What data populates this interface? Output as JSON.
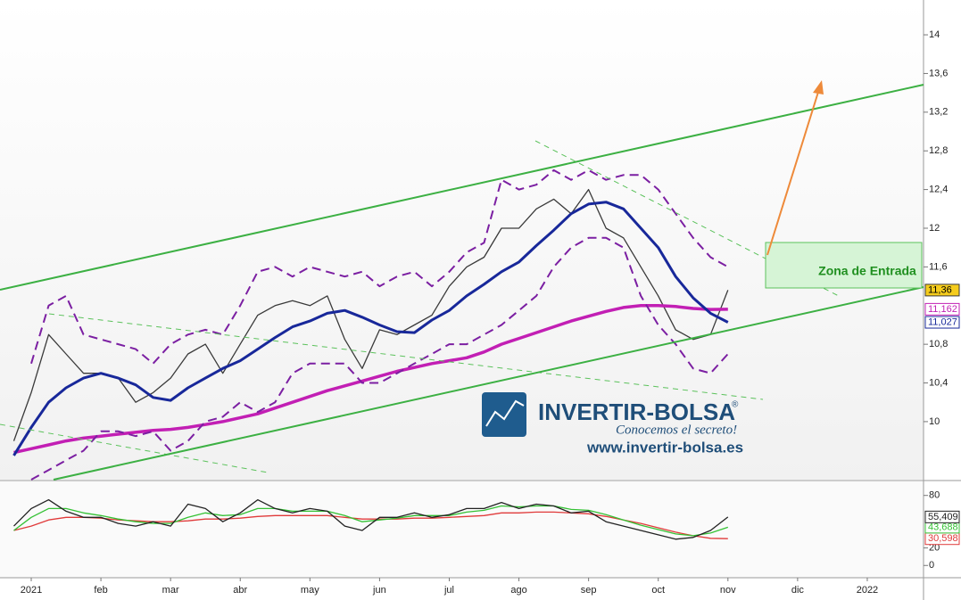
{
  "chart_data": {
    "type": "line",
    "categories": [
      null,
      "2021",
      null,
      null,
      null,
      "feb",
      null,
      null,
      null,
      "mar",
      null,
      null,
      null,
      "abr",
      null,
      null,
      null,
      "may",
      null,
      null,
      null,
      "jun",
      null,
      null,
      null,
      "jul",
      null,
      null,
      null,
      "ago",
      null,
      null,
      null,
      "sep",
      null,
      null,
      null,
      "oct",
      null,
      null,
      null,
      "nov",
      null,
      null,
      null,
      "dic",
      null,
      null,
      null,
      "2022",
      null,
      null,
      null
    ],
    "ylim": [
      9.4,
      14.36
    ],
    "yticks": [
      10,
      {
        "value": 10.4,
        "label": "10,4"
      },
      {
        "value": 10.8,
        "label": "10,8"
      },
      {
        "value": 11.6,
        "label": "11,6"
      },
      12,
      {
        "value": 12.4,
        "label": "12,4"
      },
      {
        "value": 12.8,
        "label": "12,8"
      },
      {
        "value": 13.2,
        "label": "13,2"
      },
      {
        "value": 13.6,
        "label": "13,6"
      },
      14
    ],
    "y2lim": [
      -14,
      96
    ],
    "y2ticks": [
      0,
      20,
      80
    ],
    "grid": false,
    "series": [
      {
        "color": "#3a3a3a",
        "width": 1.3,
        "label_background": "#f5cc1c",
        "values": [
          9.8,
          10.3,
          10.9,
          10.7,
          10.5,
          10.5,
          10.45,
          10.2,
          10.3,
          10.45,
          10.7,
          10.8,
          10.5,
          10.8,
          11.1,
          11.2,
          11.25,
          11.2,
          11.3,
          10.85,
          10.55,
          10.95,
          10.9,
          11.0,
          11.1,
          11.4,
          11.6,
          11.7,
          12.0,
          12.0,
          12.2,
          12.3,
          12.15,
          12.4,
          12.0,
          11.9,
          11.6,
          11.3,
          10.95,
          10.85,
          10.9,
          11.36,
          null,
          null,
          null,
          null,
          null,
          null,
          null,
          null,
          null,
          null,
          null
        ],
        "value_labels": [
          null,
          null,
          null,
          null,
          null,
          null,
          null,
          null,
          null,
          null,
          null,
          null,
          null,
          null,
          null,
          null,
          null,
          null,
          null,
          null,
          null,
          null,
          null,
          null,
          null,
          null,
          null,
          null,
          null,
          null,
          null,
          null,
          null,
          null,
          null,
          null,
          null,
          null,
          null,
          null,
          null,
          "11,36",
          null,
          null,
          null,
          null,
          null,
          null,
          null,
          null,
          null,
          null,
          null
        ]
      },
      {
        "color": "#c21fb4",
        "width": 3.5,
        "values": [
          9.68,
          9.72,
          9.76,
          9.8,
          9.83,
          9.85,
          9.87,
          9.89,
          9.91,
          9.92,
          9.94,
          9.97,
          10.0,
          10.04,
          10.08,
          10.14,
          10.2,
          10.26,
          10.32,
          10.37,
          10.42,
          10.47,
          10.52,
          10.56,
          10.6,
          10.63,
          10.66,
          10.72,
          10.8,
          10.86,
          10.92,
          10.98,
          11.04,
          11.09,
          11.14,
          11.18,
          11.2,
          11.2,
          11.19,
          11.17,
          11.16,
          11.162,
          null,
          null,
          null,
          null,
          null,
          null,
          null,
          null,
          null,
          null,
          null
        ],
        "value_labels": [
          null,
          null,
          null,
          null,
          null,
          null,
          null,
          null,
          null,
          null,
          null,
          null,
          null,
          null,
          null,
          null,
          null,
          null,
          null,
          null,
          null,
          null,
          null,
          null,
          null,
          null,
          null,
          null,
          null,
          null,
          null,
          null,
          null,
          null,
          null,
          null,
          null,
          null,
          null,
          null,
          null,
          "11,162",
          null,
          null,
          null,
          null,
          null,
          null,
          null,
          null,
          null,
          null,
          null
        ]
      },
      {
        "color": "#18289a",
        "width": 3,
        "values": [
          9.65,
          9.94,
          10.2,
          10.35,
          10.45,
          10.5,
          10.45,
          10.38,
          10.25,
          10.22,
          10.35,
          10.45,
          10.55,
          10.63,
          10.75,
          10.87,
          10.98,
          11.04,
          11.12,
          11.15,
          11.08,
          11.0,
          10.93,
          10.92,
          11.05,
          11.15,
          11.3,
          11.42,
          11.55,
          11.65,
          11.82,
          11.98,
          12.15,
          12.25,
          12.27,
          12.2,
          12.0,
          11.8,
          11.5,
          11.28,
          11.12,
          11.027,
          null,
          null,
          null,
          null,
          null,
          null,
          null,
          null,
          null,
          null,
          null
        ],
        "value_labels": [
          null,
          null,
          null,
          null,
          null,
          null,
          null,
          null,
          null,
          null,
          null,
          null,
          null,
          null,
          null,
          null,
          null,
          null,
          null,
          null,
          null,
          null,
          null,
          null,
          null,
          null,
          null,
          null,
          null,
          null,
          null,
          null,
          null,
          null,
          null,
          null,
          null,
          null,
          null,
          null,
          null,
          "11,027",
          null,
          null,
          null,
          null,
          null,
          null,
          null,
          null,
          null,
          null,
          null
        ]
      },
      {
        "color": "#7b1fa2",
        "width": 2,
        "dashed": true,
        "values": [
          null,
          10.6,
          11.2,
          11.3,
          10.9,
          10.85,
          10.8,
          10.75,
          10.6,
          10.8,
          10.9,
          10.95,
          10.9,
          11.2,
          11.55,
          11.6,
          11.5,
          11.6,
          11.55,
          11.5,
          11.55,
          11.4,
          11.5,
          11.55,
          11.4,
          11.55,
          11.75,
          11.85,
          12.5,
          12.4,
          12.45,
          12.6,
          12.5,
          12.6,
          12.5,
          12.55,
          12.55,
          12.4,
          12.15,
          11.9,
          11.7,
          11.6,
          null,
          null,
          null,
          null,
          null,
          null,
          null,
          null,
          null,
          null,
          null
        ]
      },
      {
        "color": "#7b1fa2",
        "width": 2,
        "dashed": true,
        "values": [
          null,
          9.4,
          9.5,
          9.6,
          9.7,
          9.9,
          9.9,
          9.85,
          9.9,
          9.7,
          9.8,
          10.0,
          10.05,
          10.2,
          10.1,
          10.2,
          10.5,
          10.6,
          10.6,
          10.6,
          10.4,
          10.4,
          10.5,
          10.6,
          10.7,
          10.8,
          10.8,
          10.9,
          11.0,
          11.15,
          11.3,
          11.6,
          11.8,
          11.9,
          11.9,
          11.8,
          11.3,
          11.0,
          10.8,
          10.55,
          10.5,
          10.7,
          null,
          null,
          null,
          null,
          null,
          null,
          null,
          null,
          null,
          null,
          null
        ]
      },
      {
        "axis": "y2",
        "color": "#e03a3a",
        "width": 1.3,
        "values": [
          40,
          45,
          52,
          55,
          55,
          54,
          52,
          51,
          50,
          50,
          51,
          53,
          53,
          54,
          56,
          57,
          57,
          57,
          57,
          55,
          53,
          53,
          53,
          54,
          54,
          55,
          56,
          57,
          60,
          60,
          61,
          61,
          60,
          59,
          56,
          52,
          48,
          43,
          38,
          34,
          31,
          30.598,
          null,
          null,
          null,
          null,
          null,
          null,
          null,
          null,
          null,
          null,
          null
        ],
        "value_labels": [
          null,
          null,
          null,
          null,
          null,
          null,
          null,
          null,
          null,
          null,
          null,
          null,
          null,
          null,
          null,
          null,
          null,
          null,
          null,
          null,
          null,
          null,
          null,
          null,
          null,
          null,
          null,
          null,
          null,
          null,
          null,
          null,
          null,
          null,
          null,
          null,
          null,
          null,
          null,
          null,
          null,
          "30,598",
          null,
          null,
          null,
          null,
          null,
          null,
          null,
          null,
          null,
          null,
          null
        ]
      },
      {
        "axis": "y2",
        "color": "#34c134",
        "width": 1.3,
        "values": [
          40,
          55,
          65,
          65,
          60,
          57,
          53,
          50,
          48,
          48,
          55,
          60,
          57,
          58,
          65,
          65,
          62,
          62,
          62,
          57,
          50,
          52,
          54,
          57,
          57,
          57,
          61,
          63,
          68,
          67,
          68,
          68,
          64,
          63,
          58,
          52,
          46,
          41,
          36,
          34,
          37,
          43.688,
          null,
          null,
          null,
          null,
          null,
          null,
          null,
          null,
          null,
          null,
          null
        ],
        "value_labels": [
          null,
          null,
          null,
          null,
          null,
          null,
          null,
          null,
          null,
          null,
          null,
          null,
          null,
          null,
          null,
          null,
          null,
          null,
          null,
          null,
          null,
          null,
          null,
          null,
          null,
          null,
          null,
          null,
          null,
          null,
          null,
          null,
          null,
          null,
          null,
          null,
          null,
          null,
          null,
          null,
          null,
          "43,688",
          null,
          null,
          null,
          null,
          null,
          null,
          null,
          null,
          null,
          null,
          null
        ]
      },
      {
        "axis": "y2",
        "color": "#222222",
        "width": 1.3,
        "values": [
          45,
          65,
          75,
          62,
          55,
          55,
          48,
          45,
          50,
          45,
          70,
          65,
          50,
          60,
          75,
          65,
          60,
          65,
          62,
          45,
          40,
          55,
          55,
          60,
          55,
          58,
          65,
          65,
          72,
          65,
          70,
          68,
          60,
          62,
          50,
          45,
          40,
          35,
          30,
          32,
          40,
          55.409,
          null,
          null,
          null,
          null,
          null,
          null,
          null,
          null,
          null,
          null,
          null
        ],
        "value_labels": [
          null,
          null,
          null,
          null,
          null,
          null,
          null,
          null,
          null,
          null,
          null,
          null,
          null,
          null,
          null,
          null,
          null,
          null,
          null,
          null,
          null,
          null,
          null,
          null,
          null,
          null,
          null,
          null,
          null,
          null,
          null,
          null,
          null,
          null,
          null,
          null,
          null,
          null,
          null,
          null,
          null,
          "55,409",
          null,
          null,
          null,
          null,
          null,
          null,
          null,
          null,
          null,
          null,
          null
        ]
      }
    ],
    "annotation": "Zona de Entrada"
  },
  "watermark": {
    "brand": "INVERTIR-BOLSA",
    "mark": "®",
    "slogan": "Conocemos el secreto!",
    "url": "www.invertir-bolsa.es"
  }
}
